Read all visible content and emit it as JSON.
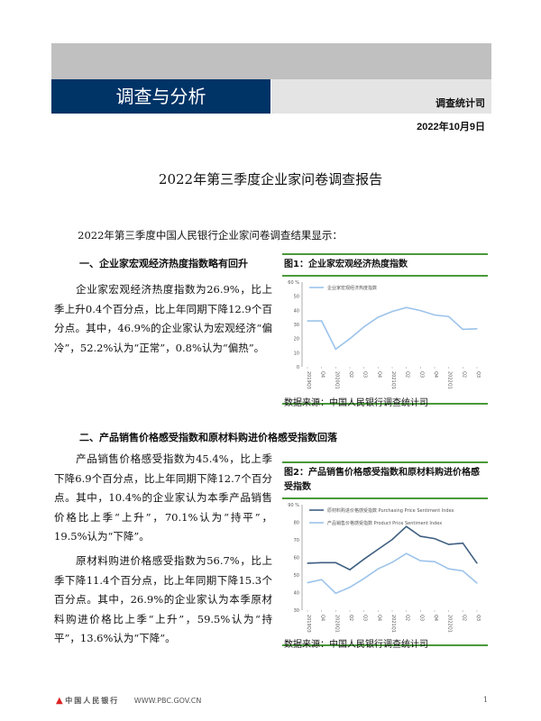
{
  "header": {
    "section": "调查与分析",
    "department": "调查统计司",
    "date": "2022年10月9日"
  },
  "title": "2022年第三季度企业家问卷调查报告",
  "intro": "2022年第三季度中国人民银行企业家问卷调查结果显示：",
  "section1": {
    "heading": "一、企业家宏观经济热度指数略有回升",
    "paragraph": "企业家宏观经济热度指数为26.9%，比上季上升0.4个百分点，比上年同期下降12.9个百分点。其中，46.9%的企业家认为宏观经济“偏冷”，52.2%认为“正常”，0.8%认为“偏热”。"
  },
  "section2": {
    "heading": "二、产品销售价格感受指数和原材料购进价格感受指数回落",
    "paragraph1": "产品销售价格感受指数为45.4%，比上季下降6.9个百分点，比上年同期下降12.7个百分点。其中，10.4%的企业家认为本季产品销售价格比上季“上升”，70.1%认为“持平”，19.5%认为“下降”。",
    "paragraph2": "原材料购进价格感受指数为56.7%，比上季下降11.4个百分点，比上年同期下降15.3个百分点。其中，26.9%的企业家认为本季原材料购进价格比上季“上升”，59.5%认为“持平”，13.6%认为“下降”。"
  },
  "footer": {
    "bank": "中国人民银行",
    "url": "WWW.PBC.GOV.CN",
    "page": "1"
  },
  "chart_data": [
    {
      "type": "line",
      "title": "图1：企业家宏观经济热度指数",
      "source": "数据来源：中国人民银行调查统计司",
      "ylabel": "%",
      "ylim": [
        0,
        60
      ],
      "yticks": [
        0,
        10,
        20,
        30,
        40,
        50,
        60
      ],
      "categories": [
        "2019Q3",
        "Q4",
        "2020Q1",
        "Q2",
        "Q3",
        "Q4",
        "2021Q1",
        "Q2",
        "Q3",
        "Q4",
        "2022Q1",
        "Q2",
        "Q3"
      ],
      "series": [
        {
          "name": "企业家宏观经济热度指数",
          "color": "#9cc3ea",
          "values": [
            32.5,
            32.5,
            12.5,
            19.9,
            28.3,
            35.1,
            39.2,
            42.0,
            39.8,
            36.7,
            35.6,
            26.5,
            26.9
          ]
        }
      ],
      "legend": "top",
      "grid": false
    },
    {
      "type": "line",
      "title": "图2：产品销售价格感受指数和原材料购进价格感受指数",
      "source": "数据来源：中国人民银行调查统计司",
      "ylabel": "%",
      "ylim": [
        30,
        90
      ],
      "yticks": [
        30,
        40,
        50,
        60,
        70,
        80,
        90
      ],
      "categories": [
        "2019Q3",
        "Q4",
        "2020Q1",
        "Q2",
        "Q3",
        "Q4",
        "2021Q1",
        "Q2",
        "Q3",
        "Q4",
        "2022Q1",
        "Q2",
        "Q3"
      ],
      "series": [
        {
          "name": "原材料购进价格感受指数 Purchasing Price Sentiment Index",
          "color": "#3f5f80",
          "values": [
            56.7,
            57.0,
            57.0,
            53.0,
            59.0,
            64.6,
            70.2,
            77.6,
            72.0,
            70.7,
            67.4,
            68.1,
            56.7
          ]
        },
        {
          "name": "产品销售价格感受指数 Product Price Sentiment Index",
          "color": "#9cc3ea",
          "values": [
            45.6,
            47.4,
            39.6,
            43.0,
            48.0,
            53.5,
            57.2,
            62.2,
            58.1,
            57.6,
            53.5,
            52.3,
            45.4
          ]
        }
      ],
      "legend": "top-left",
      "grid": false
    }
  ]
}
